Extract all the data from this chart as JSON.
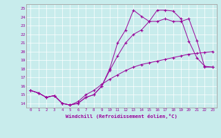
{
  "xlabel": "Windchill (Refroidissement éolien,°C)",
  "xlim": [
    -0.5,
    23.5
  ],
  "ylim": [
    13.5,
    25.5
  ],
  "xtick_labels": [
    "0",
    "1",
    "2",
    "3",
    "4",
    "5",
    "6",
    "7",
    "8",
    "9",
    "10",
    "11",
    "12",
    "13",
    "14",
    "15",
    "16",
    "17",
    "18",
    "19",
    "20",
    "21",
    "22",
    "23"
  ],
  "ytick_labels": [
    "14",
    "15",
    "16",
    "17",
    "18",
    "19",
    "20",
    "21",
    "22",
    "23",
    "24",
    "25"
  ],
  "background_color": "#c8ecec",
  "line_color": "#990099",
  "line1_x": [
    0,
    1,
    2,
    3,
    4,
    5,
    6,
    7,
    8,
    9,
    10,
    11,
    12,
    13,
    14,
    15,
    16,
    17,
    18,
    19,
    20,
    21,
    22,
    23
  ],
  "line1_y": [
    15.5,
    15.2,
    14.7,
    14.9,
    14.0,
    13.8,
    14.0,
    14.7,
    15.0,
    16.0,
    18.0,
    21.0,
    22.5,
    24.8,
    24.1,
    23.5,
    24.8,
    24.8,
    24.7,
    23.8,
    21.2,
    19.3,
    18.3,
    18.2
  ],
  "line2_x": [
    0,
    1,
    2,
    3,
    4,
    5,
    6,
    7,
    8,
    9,
    10,
    11,
    12,
    13,
    14,
    15,
    16,
    17,
    18,
    19,
    20,
    21,
    22,
    23
  ],
  "line2_y": [
    15.5,
    15.2,
    14.7,
    14.9,
    14.0,
    13.8,
    14.0,
    14.7,
    15.0,
    16.0,
    17.8,
    19.5,
    21.0,
    22.0,
    22.5,
    23.5,
    23.5,
    23.8,
    23.5,
    23.5,
    23.8,
    21.3,
    18.2,
    18.2
  ],
  "line3_x": [
    0,
    1,
    2,
    3,
    4,
    5,
    6,
    7,
    8,
    9,
    10,
    11,
    12,
    13,
    14,
    15,
    16,
    17,
    18,
    19,
    20,
    21,
    22,
    23
  ],
  "line3_y": [
    15.5,
    15.2,
    14.7,
    14.9,
    14.0,
    13.8,
    14.2,
    15.0,
    15.5,
    16.2,
    16.8,
    17.3,
    17.8,
    18.2,
    18.5,
    18.7,
    18.9,
    19.1,
    19.3,
    19.5,
    19.7,
    19.8,
    19.9,
    20.0
  ]
}
